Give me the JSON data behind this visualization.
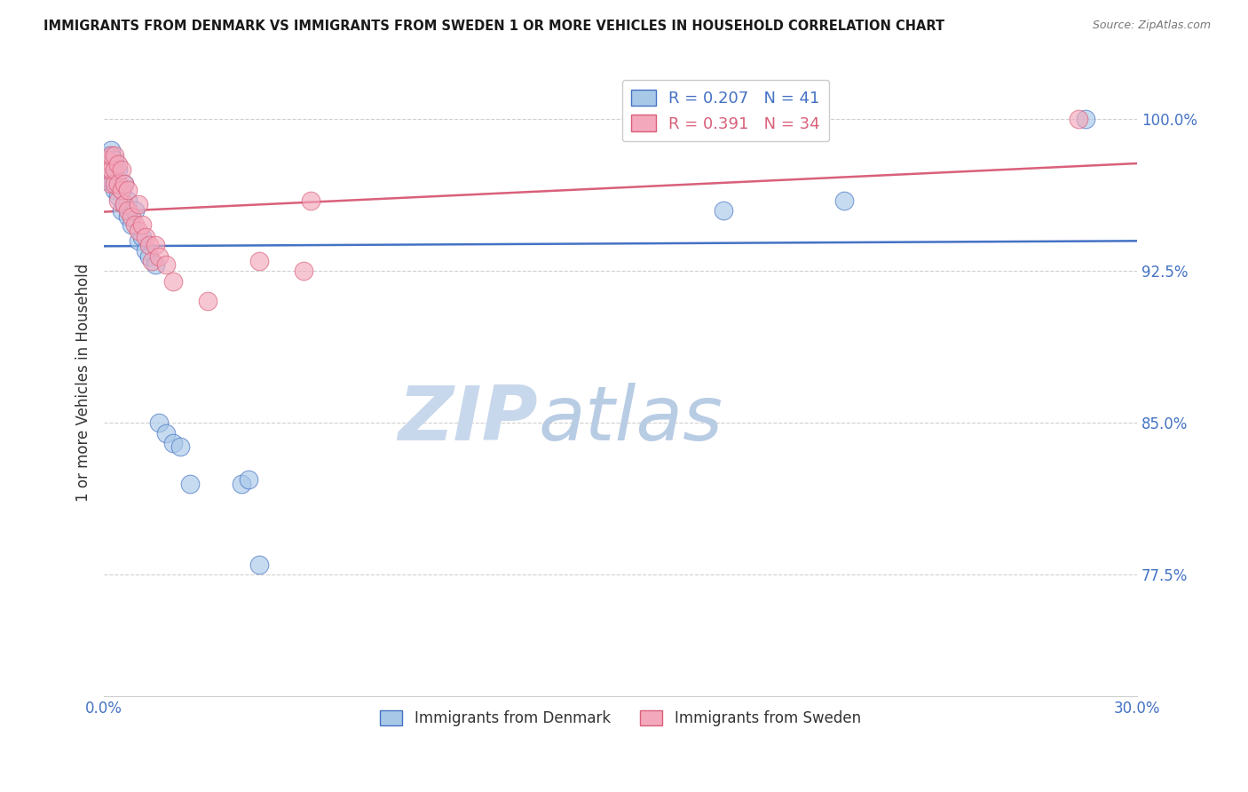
{
  "title": "IMMIGRANTS FROM DENMARK VS IMMIGRANTS FROM SWEDEN 1 OR MORE VEHICLES IN HOUSEHOLD CORRELATION CHART",
  "source": "Source: ZipAtlas.com",
  "ylabel": "1 or more Vehicles in Household",
  "xlim": [
    0.0,
    0.3
  ],
  "ylim": [
    0.715,
    1.025
  ],
  "yticks": [
    0.775,
    0.85,
    0.925,
    1.0
  ],
  "ytick_labels": [
    "77.5%",
    "85.0%",
    "92.5%",
    "100.0%"
  ],
  "xticks": [
    0.0,
    0.05,
    0.1,
    0.15,
    0.2,
    0.25,
    0.3
  ],
  "xtick_labels": [
    "0.0%",
    "",
    "",
    "",
    "",
    "",
    "30.0%"
  ],
  "legend_denmark": "Immigrants from Denmark",
  "legend_sweden": "Immigrants from Sweden",
  "R_denmark": 0.207,
  "N_denmark": 41,
  "R_sweden": 0.391,
  "N_sweden": 34,
  "color_denmark": "#a8c8e8",
  "color_sweden": "#f4a8bc",
  "line_color_denmark": "#4472c4",
  "line_color_sweden": "#d9607a",
  "watermark_zip": "ZIP",
  "watermark_atlas": "atlas",
  "watermark_color_zip": "#c8d8ec",
  "watermark_color_atlas": "#b8cce4",
  "title_color": "#1a1a1a",
  "axis_label_color": "#4472c4",
  "grid_color": "#d0d0d0",
  "denmark_x": [
    0.0,
    0.001,
    0.001,
    0.001,
    0.001,
    0.002,
    0.002,
    0.002,
    0.002,
    0.002,
    0.003,
    0.003,
    0.003,
    0.003,
    0.004,
    0.004,
    0.004,
    0.005,
    0.005,
    0.006,
    0.006,
    0.007,
    0.007,
    0.008,
    0.009,
    0.01,
    0.011,
    0.012,
    0.013,
    0.015,
    0.016,
    0.018,
    0.02,
    0.022,
    0.025,
    0.04,
    0.042,
    0.045,
    0.18,
    0.215,
    0.285
  ],
  "denmark_y": [
    0.97,
    0.975,
    0.978,
    0.98,
    0.982,
    0.97,
    0.975,
    0.978,
    0.982,
    0.985,
    0.965,
    0.97,
    0.975,
    0.98,
    0.962,
    0.968,
    0.975,
    0.955,
    0.965,
    0.958,
    0.968,
    0.952,
    0.96,
    0.948,
    0.955,
    0.94,
    0.942,
    0.935,
    0.932,
    0.928,
    0.85,
    0.845,
    0.84,
    0.838,
    0.82,
    0.82,
    0.822,
    0.78,
    0.955,
    0.96,
    1.0
  ],
  "sweden_x": [
    0.001,
    0.001,
    0.002,
    0.002,
    0.002,
    0.003,
    0.003,
    0.003,
    0.004,
    0.004,
    0.004,
    0.005,
    0.005,
    0.006,
    0.006,
    0.007,
    0.007,
    0.008,
    0.009,
    0.01,
    0.01,
    0.011,
    0.012,
    0.013,
    0.014,
    0.015,
    0.016,
    0.018,
    0.02,
    0.03,
    0.045,
    0.058,
    0.06,
    0.283
  ],
  "sweden_y": [
    0.975,
    0.98,
    0.968,
    0.975,
    0.982,
    0.968,
    0.975,
    0.982,
    0.96,
    0.968,
    0.978,
    0.965,
    0.975,
    0.958,
    0.968,
    0.955,
    0.965,
    0.952,
    0.948,
    0.945,
    0.958,
    0.948,
    0.942,
    0.938,
    0.93,
    0.938,
    0.932,
    0.928,
    0.92,
    0.91,
    0.93,
    0.925,
    0.96,
    1.0
  ]
}
